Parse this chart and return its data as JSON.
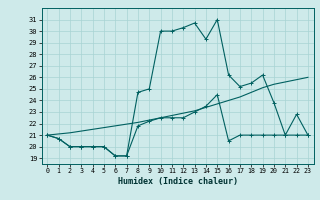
{
  "xlabel": "Humidex (Indice chaleur)",
  "xlim": [
    -0.5,
    23.5
  ],
  "ylim": [
    18.5,
    32.0
  ],
  "xticks": [
    0,
    1,
    2,
    3,
    4,
    5,
    6,
    7,
    8,
    9,
    10,
    11,
    12,
    13,
    14,
    15,
    16,
    17,
    18,
    19,
    20,
    21,
    22,
    23
  ],
  "yticks": [
    19,
    20,
    21,
    22,
    23,
    24,
    25,
    26,
    27,
    28,
    29,
    30,
    31
  ],
  "bg_color": "#ceeaea",
  "grid_color": "#a8d4d4",
  "line_color": "#006060",
  "line1_x": [
    0,
    1,
    2,
    3,
    4,
    5,
    6,
    7,
    8,
    9,
    10,
    11,
    12,
    13,
    14,
    15,
    16,
    17,
    18,
    19,
    20,
    21,
    22,
    23
  ],
  "line1_y": [
    21.0,
    20.7,
    20.0,
    20.0,
    20.0,
    20.0,
    19.2,
    19.2,
    21.8,
    22.2,
    22.5,
    22.5,
    22.5,
    23.0,
    23.5,
    24.5,
    20.5,
    21.0,
    21.0,
    21.0,
    21.0,
    21.0,
    21.0,
    21.0
  ],
  "line2_x": [
    0,
    1,
    2,
    3,
    4,
    5,
    6,
    7,
    8,
    9,
    10,
    11,
    12,
    13,
    14,
    15,
    16,
    17,
    18,
    19,
    20,
    21,
    22,
    23
  ],
  "line2_y": [
    21.0,
    20.7,
    20.0,
    20.0,
    20.0,
    20.0,
    19.2,
    19.2,
    24.7,
    25.0,
    30.0,
    30.0,
    30.3,
    30.7,
    29.3,
    31.0,
    26.2,
    25.2,
    25.5,
    26.2,
    23.8,
    21.0,
    22.8,
    21.0
  ],
  "line3_x": [
    0,
    1,
    2,
    3,
    4,
    5,
    6,
    7,
    8,
    9,
    10,
    11,
    12,
    13,
    14,
    15,
    16,
    17,
    18,
    19,
    20,
    21,
    22,
    23
  ],
  "line3_y": [
    21.0,
    21.1,
    21.2,
    21.35,
    21.5,
    21.65,
    21.8,
    21.95,
    22.1,
    22.3,
    22.5,
    22.7,
    22.9,
    23.1,
    23.4,
    23.7,
    24.0,
    24.3,
    24.7,
    25.1,
    25.4,
    25.6,
    25.8,
    26.0
  ]
}
